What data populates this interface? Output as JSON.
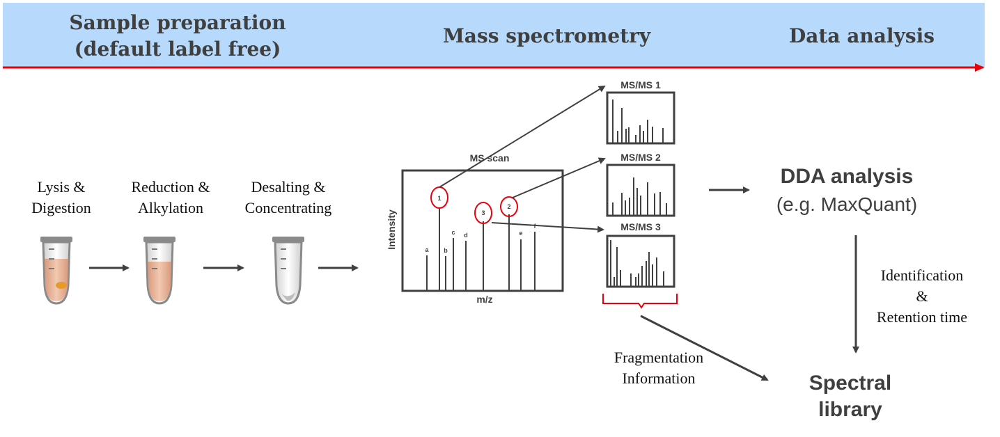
{
  "header": {
    "stage1": "Sample preparation\n(default label free)",
    "stage2": "Mass spectrometry",
    "stage3": "Data analysis"
  },
  "steps": {
    "lysis": "Lysis &\nDigestion",
    "reduction": "Reduction &\nAlkylation",
    "desalting": "Desalting &\nConcentrating"
  },
  "ms_scan": {
    "title": "MS scan",
    "ylabel": "Intensity",
    "xlabel": "m/z",
    "peak_labels": [
      "a",
      "b",
      "c",
      "d",
      "e",
      "f"
    ],
    "precursors": [
      "1",
      "2",
      "3"
    ]
  },
  "msms": {
    "titles": [
      "MS/MS 1",
      "MS/MS 2",
      "MS/MS 3"
    ]
  },
  "analysis": {
    "title": "DDA analysis",
    "subtitle": "(e.g. MaxQuant)",
    "id_label": "Identification\n&\nRetention time",
    "frag_label": "Fragmentation\nInformation",
    "library": "Spectral\nlibrary"
  },
  "colors": {
    "banner": "#b7d9fb",
    "arrow_red": "#e8000b",
    "highlight_red": "#e8000b",
    "dark": "#404040"
  }
}
